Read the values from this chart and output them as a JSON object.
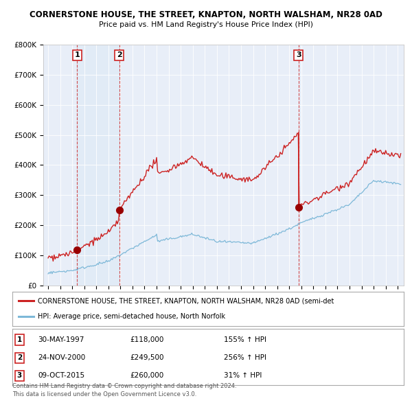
{
  "title": "CORNERSTONE HOUSE, THE STREET, KNAPTON, NORTH WALSHAM, NR28 0AD",
  "subtitle": "Price paid vs. HM Land Registry's House Price Index (HPI)",
  "ylim": [
    0,
    800000
  ],
  "yticks": [
    0,
    100000,
    200000,
    300000,
    400000,
    500000,
    600000,
    700000,
    800000
  ],
  "ytick_labels": [
    "£0",
    "£100K",
    "£200K",
    "£300K",
    "£400K",
    "£500K",
    "£600K",
    "£700K",
    "£800K"
  ],
  "sale_prices": [
    118000,
    249500,
    260000
  ],
  "sale_labels": [
    "1",
    "2",
    "3"
  ],
  "hpi_line_color": "#7db8d8",
  "price_line_color": "#cc2222",
  "sale_marker_color": "#990000",
  "dashed_line_color": "#cc2222",
  "shade_color": "#dce9f5",
  "plot_bg_color": "#e8eef8",
  "legend_line1": "CORNERSTONE HOUSE, THE STREET, KNAPTON, NORTH WALSHAM, NR28 0AD (semi-det",
  "legend_line2": "HPI: Average price, semi-detached house, North Norfolk",
  "rows": [
    [
      "1",
      "30-MAY-1997",
      "£118,000",
      "155% ↑ HPI"
    ],
    [
      "2",
      "24-NOV-2000",
      "£249,500",
      "256% ↑ HPI"
    ],
    [
      "3",
      "09-OCT-2015",
      "£260,000",
      "31% ↑ HPI"
    ]
  ],
  "footer1": "Contains HM Land Registry data © Crown copyright and database right 2024.",
  "footer2": "This data is licensed under the Open Government Licence v3.0."
}
